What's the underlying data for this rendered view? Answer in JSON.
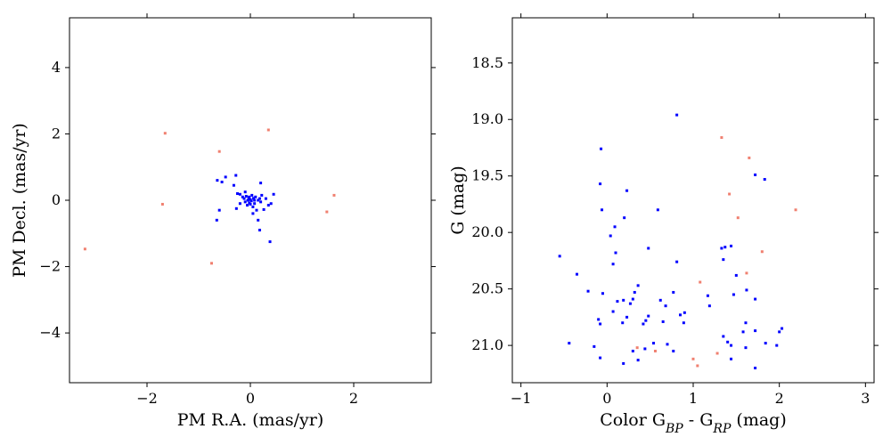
{
  "chart_data": [
    {
      "type": "scatter",
      "title": "",
      "xlabel": "PM R.A. (mas/yr)",
      "ylabel": "PM Decl. (mas/yr)",
      "xlim": [
        -3.5,
        3.5
      ],
      "ylim": [
        -5.5,
        5.5
      ],
      "xticks": [
        -2,
        0,
        2
      ],
      "yticks": [
        -4,
        -2,
        0,
        2,
        4
      ],
      "xtick_labels": [
        "−2",
        "0",
        "2"
      ],
      "ytick_labels": [
        "−4",
        "−2",
        "0",
        "2",
        "4"
      ],
      "grid": false,
      "series": [
        {
          "color": "#0000ff",
          "points": [
            [
              -0.64,
              0.6
            ],
            [
              -0.55,
              0.55
            ],
            [
              -0.48,
              0.7
            ],
            [
              -0.32,
              0.45
            ],
            [
              -0.28,
              0.75
            ],
            [
              -0.25,
              0.2
            ],
            [
              -0.2,
              0.18
            ],
            [
              -0.27,
              -0.25
            ],
            [
              -0.2,
              -0.1
            ],
            [
              -0.15,
              0.1
            ],
            [
              -0.12,
              0.05
            ],
            [
              -0.1,
              -0.05
            ],
            [
              -0.08,
              0.12
            ],
            [
              -0.06,
              -0.15
            ],
            [
              -0.05,
              0.0
            ],
            [
              -0.03,
              0.08
            ],
            [
              -0.02,
              -0.08
            ],
            [
              0.0,
              0.02
            ],
            [
              0.02,
              -0.02
            ],
            [
              0.03,
              0.15
            ],
            [
              0.05,
              -0.2
            ],
            [
              0.06,
              0.06
            ],
            [
              0.08,
              -0.1
            ],
            [
              0.1,
              0.1
            ],
            [
              0.12,
              -0.3
            ],
            [
              0.15,
              0.0
            ],
            [
              0.18,
              0.05
            ],
            [
              0.2,
              -0.05
            ],
            [
              0.22,
              0.15
            ],
            [
              0.26,
              -0.28
            ],
            [
              0.3,
              0.05
            ],
            [
              0.35,
              -0.15
            ],
            [
              0.4,
              -0.1
            ],
            [
              0.45,
              0.18
            ],
            [
              0.2,
              0.52
            ],
            [
              0.15,
              -0.6
            ],
            [
              0.18,
              -0.9
            ],
            [
              0.38,
              -1.25
            ],
            [
              -0.6,
              -0.3
            ],
            [
              -0.65,
              -0.6
            ],
            [
              0.05,
              -0.4
            ],
            [
              -0.1,
              0.25
            ],
            [
              0.0,
              -0.12
            ],
            [
              0.08,
              0.0
            ],
            [
              -0.02,
              0.1
            ]
          ]
        },
        {
          "color": "#f08070",
          "points": [
            [
              -1.65,
              2.02
            ],
            [
              0.35,
              2.12
            ],
            [
              -0.6,
              1.47
            ],
            [
              -1.7,
              -0.12
            ],
            [
              1.62,
              0.15
            ],
            [
              1.48,
              -0.35
            ],
            [
              -3.2,
              -1.47
            ],
            [
              -0.75,
              -1.9
            ]
          ]
        }
      ]
    },
    {
      "type": "scatter",
      "title": "",
      "xlabel": "Color G_BP - G_RP (mag)",
      "ylabel": "G (mag)",
      "xlim": [
        -1.1,
        3.1
      ],
      "ylim": [
        21.33,
        18.1
      ],
      "y_inverted": true,
      "xticks": [
        -1,
        0,
        1,
        2,
        3
      ],
      "yticks": [
        18.5,
        19.0,
        19.5,
        20.0,
        20.5,
        21.0
      ],
      "xtick_labels": [
        "−1",
        "0",
        "1",
        "2",
        "3"
      ],
      "ytick_labels": [
        "18.5",
        "19.0",
        "19.5",
        "20.0",
        "20.5",
        "21.0"
      ],
      "grid": false,
      "series": [
        {
          "color": "#0000ff",
          "points": [
            [
              0.81,
              18.96
            ],
            [
              -0.07,
              19.26
            ],
            [
              -0.08,
              19.57
            ],
            [
              0.23,
              19.63
            ],
            [
              -0.06,
              19.8
            ],
            [
              0.09,
              19.95
            ],
            [
              0.04,
              20.03
            ],
            [
              0.2,
              19.87
            ],
            [
              0.59,
              19.8
            ],
            [
              1.72,
              19.49
            ],
            [
              1.83,
              19.53
            ],
            [
              1.33,
              20.14
            ],
            [
              1.37,
              20.13
            ],
            [
              1.44,
              20.12
            ],
            [
              1.35,
              20.24
            ],
            [
              0.48,
              20.14
            ],
            [
              0.1,
              20.18
            ],
            [
              0.07,
              20.28
            ],
            [
              0.81,
              20.26
            ],
            [
              -0.55,
              20.21
            ],
            [
              -0.35,
              20.37
            ],
            [
              -0.22,
              20.52
            ],
            [
              -0.05,
              20.54
            ],
            [
              0.07,
              20.7
            ],
            [
              0.12,
              20.61
            ],
            [
              0.19,
              20.6
            ],
            [
              0.3,
              20.59
            ],
            [
              0.27,
              20.63
            ],
            [
              0.36,
              20.47
            ],
            [
              0.32,
              20.53
            ],
            [
              0.62,
              20.6
            ],
            [
              0.68,
              20.65
            ],
            [
              0.77,
              20.53
            ],
            [
              0.85,
              20.73
            ],
            [
              0.9,
              20.71
            ],
            [
              1.17,
              20.56
            ],
            [
              1.5,
              20.38
            ],
            [
              1.62,
              20.51
            ],
            [
              -0.08,
              20.81
            ],
            [
              -0.1,
              20.77
            ],
            [
              0.18,
              20.8
            ],
            [
              0.23,
              20.75
            ],
            [
              0.42,
              20.81
            ],
            [
              0.45,
              20.78
            ],
            [
              0.48,
              20.74
            ],
            [
              0.65,
              20.79
            ],
            [
              0.89,
              20.8
            ],
            [
              1.58,
              20.88
            ],
            [
              1.72,
              20.87
            ],
            [
              2.03,
              20.85
            ],
            [
              2.0,
              20.88
            ],
            [
              1.19,
              20.65
            ],
            [
              1.47,
              20.55
            ],
            [
              1.61,
              20.8
            ],
            [
              1.72,
              20.59
            ],
            [
              -0.44,
              20.98
            ],
            [
              -0.15,
              21.01
            ],
            [
              0.3,
              21.05
            ],
            [
              0.44,
              21.03
            ],
            [
              0.54,
              20.98
            ],
            [
              0.7,
              20.99
            ],
            [
              0.77,
              21.05
            ],
            [
              1.35,
              20.92
            ],
            [
              1.4,
              20.97
            ],
            [
              1.44,
              21.0
            ],
            [
              1.84,
              20.98
            ],
            [
              1.97,
              21.0
            ],
            [
              -0.08,
              21.11
            ],
            [
              0.19,
              21.16
            ],
            [
              0.36,
              21.13
            ],
            [
              1.44,
              21.12
            ],
            [
              1.61,
              21.02
            ],
            [
              1.72,
              21.2
            ]
          ]
        },
        {
          "color": "#f08070",
          "points": [
            [
              1.33,
              19.16
            ],
            [
              1.65,
              19.34
            ],
            [
              1.42,
              19.66
            ],
            [
              1.52,
              19.87
            ],
            [
              2.19,
              19.8
            ],
            [
              1.8,
              20.17
            ],
            [
              1.62,
              20.36
            ],
            [
              1.08,
              20.44
            ],
            [
              1.28,
              21.07
            ],
            [
              1.0,
              21.12
            ],
            [
              1.05,
              21.18
            ],
            [
              0.35,
              21.02
            ],
            [
              0.56,
              21.05
            ]
          ]
        }
      ]
    }
  ]
}
